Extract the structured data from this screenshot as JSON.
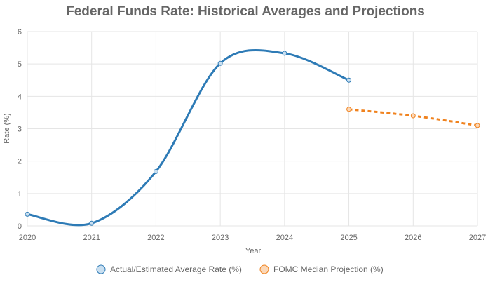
{
  "chart_data": {
    "type": "line",
    "title": "Federal Funds Rate: Historical Averages and Projections",
    "xlabel": "Year",
    "ylabel": "Rate (%)",
    "x": [
      "2020",
      "2021",
      "2022",
      "2023",
      "2024",
      "2025",
      "2026",
      "2027"
    ],
    "ylim": [
      0,
      6
    ],
    "yticks": [
      "0",
      "1",
      "2",
      "3",
      "4",
      "5",
      "6"
    ],
    "grid": true,
    "legend_position": "bottom",
    "series": [
      {
        "name": "Actual/Estimated Average Rate (%)",
        "color": "#2e7bb6",
        "style": "solid",
        "points": [
          {
            "x": "2020",
            "y": 0.36
          },
          {
            "x": "2021",
            "y": 0.08
          },
          {
            "x": "2022",
            "y": 1.68
          },
          {
            "x": "2023",
            "y": 5.02
          },
          {
            "x": "2024",
            "y": 5.33
          },
          {
            "x": "2025",
            "y": 4.5
          }
        ]
      },
      {
        "name": "FOMC Median Projection (%)",
        "color": "#f0821e",
        "style": "dashed",
        "points": [
          {
            "x": "2025",
            "y": 3.6
          },
          {
            "x": "2026",
            "y": 3.4
          },
          {
            "x": "2027",
            "y": 3.1
          }
        ]
      }
    ]
  }
}
